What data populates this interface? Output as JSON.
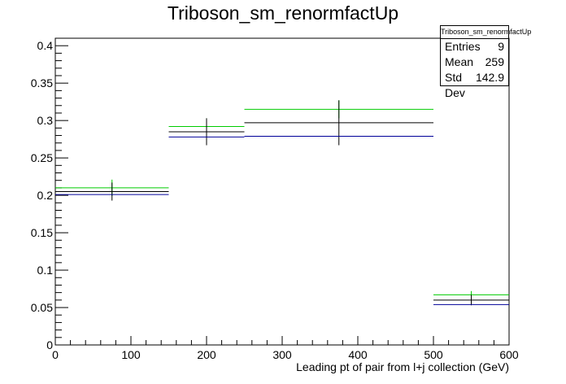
{
  "chart_data": {
    "type": "line",
    "title": "Triboson_sm_renormfactUp",
    "xlabel": "Leading pt of pair from l+j collection (GeV)",
    "ylabel": "",
    "xlim": [
      0,
      600
    ],
    "ylim": [
      0,
      0.41
    ],
    "x_ticks": [
      0,
      100,
      200,
      300,
      400,
      500,
      600
    ],
    "y_ticks": [
      0,
      0.05,
      0.1,
      0.15,
      0.2,
      0.25,
      0.3,
      0.35,
      0.4
    ],
    "x_tick_labels": [
      "0",
      "100",
      "200",
      "300",
      "400",
      "500",
      "600"
    ],
    "y_tick_labels": [
      "0",
      "0.05",
      "0.1",
      "0.15",
      "0.2",
      "0.25",
      "0.3",
      "0.35",
      "0.4"
    ],
    "bin_edges": [
      0,
      150,
      250,
      500,
      600
    ],
    "grid": false,
    "series": [
      {
        "color": "#00cc00",
        "values": [
          0.21,
          0.292,
          0.315,
          0.067
        ],
        "errors": [
          0.011,
          0.011,
          0.012,
          0.005
        ]
      },
      {
        "color": "#000000",
        "values": [
          0.205,
          0.285,
          0.297,
          0.06
        ],
        "errors": [
          0.012,
          0.018,
          0.03,
          0.007
        ]
      },
      {
        "color": "#000099",
        "values": [
          0.201,
          0.278,
          0.279,
          0.054
        ],
        "errors": [
          0,
          0,
          0,
          0
        ]
      }
    ]
  },
  "stats": {
    "title": "Triboson_sm_renormfactUp",
    "rows": [
      {
        "label": "Entries",
        "value": "9"
      },
      {
        "label": "Mean",
        "value": "259"
      },
      {
        "label": "Std Dev",
        "value": "142.9"
      }
    ]
  }
}
